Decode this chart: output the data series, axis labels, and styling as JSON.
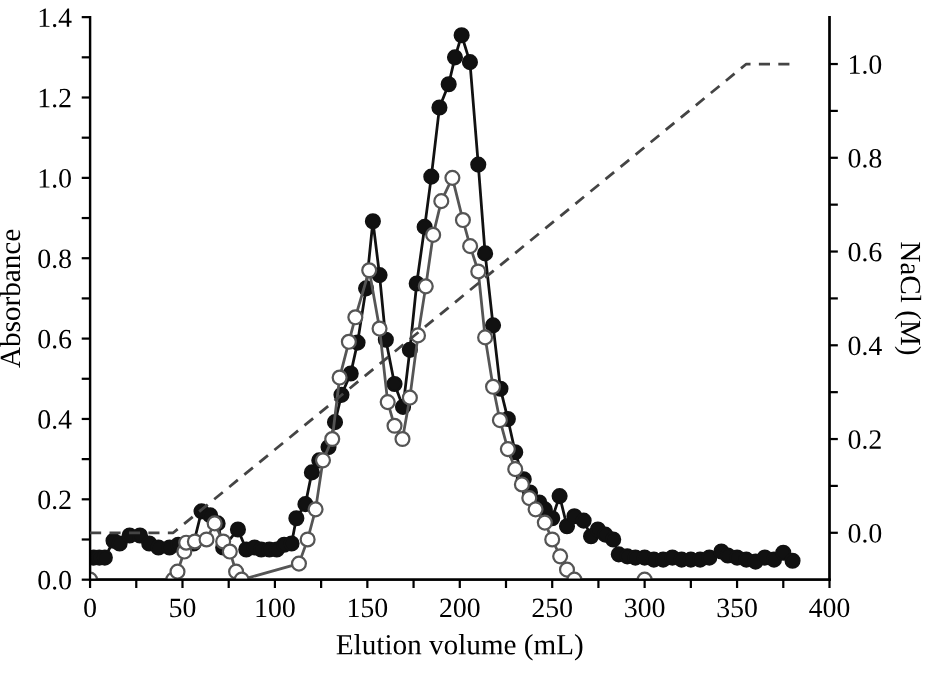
{
  "chart_data": {
    "type": "line",
    "xlabel": "Elution volume (mL)",
    "ylabel": "Absorbance",
    "y2label": "NaCl (M)",
    "series": [
      {
        "color": "#111111",
        "marker": "circle",
        "line_style": "solid",
        "x": [
          2,
          5,
          8,
          12.7,
          16,
          21.4,
          27,
          32,
          37,
          43,
          47.7,
          52,
          56,
          60.3,
          65,
          69,
          72,
          80,
          84.5,
          89,
          92.6,
          97,
          101,
          105,
          109,
          111.6,
          116.5,
          120,
          124,
          129,
          132.5,
          136,
          141,
          144.7,
          149.3,
          153,
          156.6,
          160,
          164.7,
          169.3,
          173,
          176.7,
          181,
          184.6,
          189,
          194,
          197.4,
          201,
          205.5,
          210,
          213.7,
          218,
          222,
          226,
          230,
          234.6,
          238,
          243,
          246,
          250,
          254,
          258,
          262,
          267,
          271,
          274.7,
          278.7,
          283,
          286,
          290.6,
          295,
          300,
          305,
          310,
          315,
          320,
          325,
          330,
          335,
          341.5,
          345,
          350,
          355,
          360,
          365,
          370,
          375,
          380
        ],
        "values": [
          0.055,
          0.055,
          0.055,
          0.097,
          0.09,
          0.11,
          0.11,
          0.09,
          0.08,
          0.08,
          0.087,
          0.09,
          0.09,
          0.17,
          0.16,
          0.14,
          0.08,
          0.125,
          0.075,
          0.08,
          0.075,
          0.075,
          0.075,
          0.087,
          0.09,
          0.153,
          0.188,
          0.267,
          0.297,
          0.33,
          0.392,
          0.46,
          0.513,
          0.59,
          0.725,
          0.892,
          0.758,
          0.597,
          0.487,
          0.43,
          0.572,
          0.737,
          0.878,
          1.003,
          1.175,
          1.233,
          1.3,
          1.355,
          1.288,
          1.033,
          0.812,
          0.633,
          0.475,
          0.4,
          0.317,
          0.25,
          0.217,
          0.192,
          0.175,
          0.153,
          0.208,
          0.133,
          0.158,
          0.147,
          0.108,
          0.125,
          0.112,
          0.1,
          0.063,
          0.058,
          0.055,
          0.055,
          0.05,
          0.05,
          0.055,
          0.05,
          0.05,
          0.05,
          0.055,
          0.07,
          0.06,
          0.055,
          0.05,
          0.045,
          0.055,
          0.05,
          0.067,
          0.047
        ]
      },
      {
        "color": "#555555",
        "marker": "circle",
        "line_style": "solid",
        "x": [
          0,
          45,
          47.3,
          51,
          52,
          56.7,
          63,
          67.4,
          72,
          75.6,
          79,
          82,
          113,
          117.7,
          122,
          126,
          131,
          135,
          140,
          143.5,
          151,
          156.6,
          161,
          164.7,
          169,
          173,
          177.4,
          181.6,
          185.6,
          190,
          196,
          201.7,
          205.6,
          210,
          213.7,
          218,
          221.7,
          226,
          230,
          233.6,
          237.6,
          241,
          246,
          250,
          254.3,
          258,
          262,
          300
        ],
        "values": [
          0,
          0,
          0.02,
          0.07,
          0.092,
          0.095,
          0.1,
          0.14,
          0.095,
          0.07,
          0.02,
          0,
          0.04,
          0.1,
          0.175,
          0.297,
          0.35,
          0.503,
          0.592,
          0.653,
          0.77,
          0.625,
          0.442,
          0.383,
          0.35,
          0.453,
          0.608,
          0.73,
          0.858,
          0.942,
          1.0,
          0.895,
          0.83,
          0.767,
          0.603,
          0.48,
          0.397,
          0.325,
          0.275,
          0.237,
          0.203,
          0.175,
          0.142,
          0.1,
          0.058,
          0.025,
          0,
          0
        ]
      },
      {
        "type": "line",
        "axis": "y2",
        "color": "#444444",
        "marker": "none",
        "line_style": "dashed",
        "x": [
          0,
          45,
          355,
          380
        ],
        "values": [
          0,
          0,
          1,
          1
        ]
      }
    ],
    "xlim": [
      0,
      400
    ],
    "ylim": [
      0,
      1.4
    ],
    "y2lim": [
      -0.1,
      1.1
    ],
    "xticks": [
      0,
      {
        "value": 25,
        "label": null
      },
      50,
      {
        "value": 75,
        "label": null
      },
      100,
      {
        "value": 125,
        "label": null
      },
      150,
      {
        "value": 175,
        "label": null
      },
      200,
      {
        "value": 225,
        "label": null
      },
      250,
      {
        "value": 275,
        "label": null
      },
      300,
      {
        "value": 325,
        "label": null
      },
      350,
      {
        "value": 375,
        "label": null
      },
      400
    ],
    "yticks": [
      {
        "value": 0,
        "label": "0.0"
      },
      {
        "value": 0.1,
        "label": null
      },
      {
        "value": 0.2,
        "label": "0.2"
      },
      {
        "value": 0.3,
        "label": null
      },
      {
        "value": 0.4,
        "label": "0.4"
      },
      {
        "value": 0.5,
        "label": null
      },
      {
        "value": 0.6,
        "label": "0.6"
      },
      {
        "value": 0.7,
        "label": null
      },
      {
        "value": 0.8,
        "label": "0.8"
      },
      {
        "value": 0.9,
        "label": null
      },
      {
        "value": 1.0,
        "label": "1.0"
      },
      {
        "value": 1.1,
        "label": null
      },
      {
        "value": 1.2,
        "label": "1.2"
      },
      {
        "value": 1.3,
        "label": null
      },
      {
        "value": 1.4,
        "label": "1.4"
      }
    ],
    "y2ticks": [
      {
        "value": 0,
        "label": "0.0"
      },
      {
        "value": 0.1,
        "label": null
      },
      {
        "value": 0.2,
        "label": "0.2"
      },
      {
        "value": 0.3,
        "label": null
      },
      {
        "value": 0.4,
        "label": "0.4"
      },
      {
        "value": 0.5,
        "label": null
      },
      {
        "value": 0.6,
        "label": "0.6"
      },
      {
        "value": 0.7,
        "label": null
      },
      {
        "value": 0.8,
        "label": "0.8"
      },
      {
        "value": 0.9,
        "label": null
      },
      {
        "value": 1.0,
        "label": "1.0"
      }
    ],
    "grid": false,
    "legend": false
  }
}
